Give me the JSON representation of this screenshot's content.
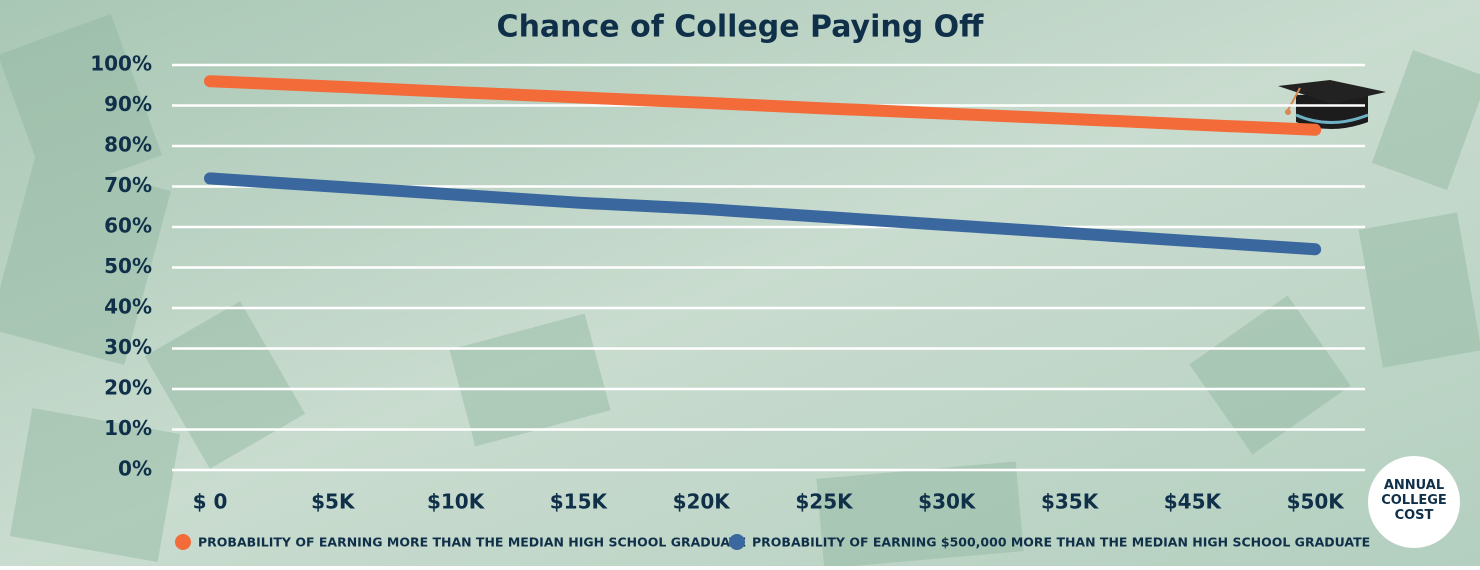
{
  "chart_data": {
    "type": "line",
    "title": "Chance of College Paying Off",
    "x_label": "ANNUAL COLLEGE COST",
    "categories": [
      "$ 0",
      "$5K",
      "$10K",
      "$15K",
      "$20K",
      "$25K",
      "$30K",
      "$35K",
      "$45K",
      "$50K"
    ],
    "series": [
      {
        "name": "PROBABILITY OF EARNING MORE THAN THE MEDIAN HIGH SCHOOL GRADUATE",
        "color": "#f26b38",
        "values": [
          96,
          94.7,
          93.3,
          92,
          90.7,
          89.3,
          88,
          86.7,
          85.3,
          84
        ]
      },
      {
        "name": "PROBABILITY OF EARNING $500,000 MORE THAN THE MEDIAN HIGH SCHOOL GRADUATE",
        "color": "#3a679d",
        "values": [
          72,
          70,
          68,
          66,
          64.5,
          62.5,
          60.5,
          58.5,
          56.5,
          54.5
        ]
      }
    ],
    "ylim": [
      0,
      100
    ],
    "yticks": [
      {
        "value": 0,
        "label": "0%"
      },
      {
        "value": 10,
        "label": "10%"
      },
      {
        "value": 20,
        "label": "20%"
      },
      {
        "value": 30,
        "label": "30%"
      },
      {
        "value": 40,
        "label": "40%"
      },
      {
        "value": 50,
        "label": "50%"
      },
      {
        "value": 60,
        "label": "60%"
      },
      {
        "value": 70,
        "label": "70%"
      },
      {
        "value": 80,
        "label": "80%"
      },
      {
        "value": 90,
        "label": "90%"
      },
      {
        "value": 100,
        "label": "100%"
      }
    ],
    "grid": true
  }
}
